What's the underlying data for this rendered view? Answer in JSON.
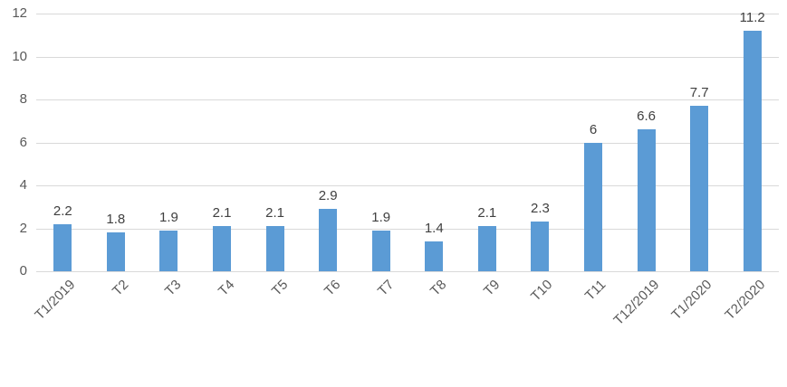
{
  "chart_data": {
    "type": "bar",
    "title": "",
    "xlabel": "",
    "ylabel": "",
    "categories": [
      "T1/2019",
      "T2",
      "T3",
      "T4",
      "T5",
      "T6",
      "T7",
      "T8",
      "T9",
      "T10",
      "T11",
      "T12/2019",
      "T1/2020",
      "T2/2020"
    ],
    "values": [
      2.2,
      1.8,
      1.9,
      2.1,
      2.1,
      2.9,
      1.9,
      1.4,
      2.1,
      2.3,
      6,
      6.6,
      7.7,
      11.2
    ],
    "data_labels": [
      "2.2",
      "1.8",
      "1.9",
      "2.1",
      "2.1",
      "2.9",
      "1.9",
      "1.4",
      "2.1",
      "2.3",
      "6",
      "6.6",
      "7.7",
      "11.2"
    ],
    "ylim": [
      0,
      12
    ],
    "yticks": [
      0,
      2,
      4,
      6,
      8,
      10,
      12
    ],
    "grid": true,
    "legend": false,
    "x_labels_rotation_deg": 45,
    "colors": {
      "bar": "#5B9BD5",
      "gridline": "#D9D9D9",
      "axis_text": "#595959",
      "data_label": "#404040",
      "background": "#FFFFFF"
    }
  }
}
